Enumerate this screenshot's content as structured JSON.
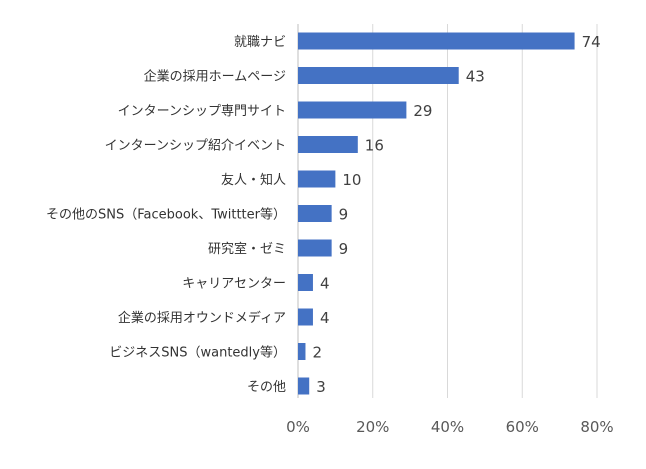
{
  "chart_data": {
    "type": "bar",
    "orientation": "horizontal",
    "categories": [
      "就職ナビ",
      "企業の採用ホームページ",
      "インターンシップ専門サイト",
      "インターンシップ紹介イベント",
      "友人・知人",
      "その他のSNS（Facebook、Twittter等）",
      "研究室・ゼミ",
      "キャリアセンター",
      "企業の採用オウンドメディア",
      "ビジネスSNS（wantedly等）",
      "その他"
    ],
    "values": [
      74,
      43,
      29,
      16,
      10,
      9,
      9,
      4,
      4,
      2,
      3
    ],
    "data_labels": [
      "74",
      "43",
      "29",
      "16",
      "10",
      "9",
      "9",
      "4",
      "4",
      "2",
      "3"
    ],
    "x_ticks": [
      "0%",
      "20%",
      "40%",
      "60%",
      "80%"
    ],
    "xlim": [
      0,
      80
    ],
    "grid": true,
    "bar_color": "#4472C4",
    "grid_color": "#D9D9D9"
  }
}
